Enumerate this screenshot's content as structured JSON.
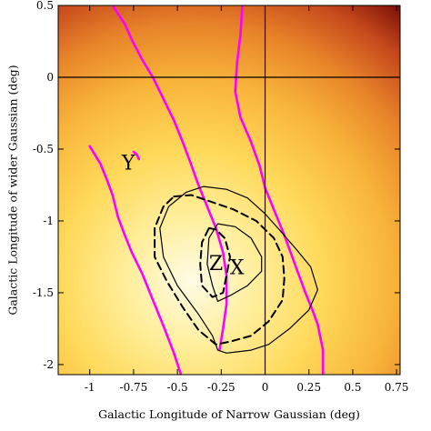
{
  "chart_data": {
    "type": "heatmap",
    "xlabel": "Galactic Longitude of Narrow Gaussian (deg)",
    "ylabel": "Galactic Longitude of wider Gaussian (deg)",
    "xlim": [
      -1.18,
      0.77
    ],
    "ylim": [
      -2.07,
      0.5
    ],
    "x_ticks": [
      -1,
      -0.75,
      -0.5,
      -0.25,
      0,
      0.25,
      0.5,
      0.75
    ],
    "x_tick_labels": [
      "-1",
      "-0.75",
      "-0.5",
      "-0.25",
      "0",
      "0.25",
      "0.5",
      "0.75"
    ],
    "y_ticks": [
      0.5,
      0,
      -0.5,
      -1,
      -1.5,
      -2
    ],
    "y_tick_labels": [
      "0.5",
      "0",
      "-0.5",
      "-1",
      "-1.5",
      "-2"
    ],
    "grid": false,
    "colormap": {
      "peak": [
        -0.42,
        -1.42
      ],
      "stops": [
        "#fffbe6",
        "#ffef9e",
        "#ffd95a",
        "#f8b43a",
        "#e8842a",
        "#c64a1c",
        "#7a0e06"
      ]
    },
    "reference_lines": {
      "x": 0,
      "y": 0,
      "color": "#000000"
    },
    "contours": [
      {
        "name": "magenta-left",
        "color": "#ff00ff",
        "style": "solid",
        "points": [
          [
            -1.0,
            -0.48
          ],
          [
            -0.94,
            -0.6
          ],
          [
            -0.9,
            -0.72
          ],
          [
            -0.87,
            -0.82
          ],
          [
            -0.84,
            -0.97
          ],
          [
            -0.8,
            -1.1
          ],
          [
            -0.76,
            -1.22
          ],
          [
            -0.7,
            -1.37
          ],
          [
            -0.64,
            -1.55
          ],
          [
            -0.58,
            -1.73
          ],
          [
            -0.52,
            -1.92
          ],
          [
            -0.48,
            -2.07
          ]
        ]
      },
      {
        "name": "magenta-middle",
        "color": "#ff00ff",
        "style": "solid",
        "points": [
          [
            -0.87,
            0.5
          ],
          [
            -0.8,
            0.37
          ],
          [
            -0.76,
            0.26
          ],
          [
            -0.7,
            0.12
          ],
          [
            -0.64,
            0.0
          ],
          [
            -0.58,
            -0.15
          ],
          [
            -0.52,
            -0.3
          ],
          [
            -0.47,
            -0.45
          ],
          [
            -0.43,
            -0.58
          ],
          [
            -0.38,
            -0.75
          ],
          [
            -0.33,
            -0.9
          ],
          [
            -0.28,
            -1.05
          ],
          [
            -0.24,
            -1.22
          ],
          [
            -0.22,
            -1.38
          ],
          [
            -0.22,
            -1.58
          ],
          [
            -0.24,
            -1.75
          ],
          [
            -0.26,
            -1.9
          ]
        ]
      },
      {
        "name": "magenta-right",
        "color": "#ff00ff",
        "style": "solid",
        "points": [
          [
            -0.13,
            0.5
          ],
          [
            -0.14,
            0.3
          ],
          [
            -0.16,
            0.1
          ],
          [
            -0.17,
            -0.1
          ],
          [
            -0.14,
            -0.28
          ],
          [
            -0.08,
            -0.45
          ],
          [
            -0.03,
            -0.62
          ],
          [
            0.0,
            -0.77
          ],
          [
            0.06,
            -0.95
          ],
          [
            0.11,
            -1.1
          ],
          [
            0.17,
            -1.3
          ],
          [
            0.23,
            -1.5
          ],
          [
            0.27,
            -1.62
          ],
          [
            0.3,
            -1.72
          ],
          [
            0.33,
            -1.9
          ],
          [
            0.33,
            -2.07
          ]
        ]
      },
      {
        "name": "magenta-y",
        "color": "#ff00ff",
        "style": "solid",
        "points": [
          [
            -0.75,
            -0.52
          ],
          [
            -0.73,
            -0.54
          ],
          [
            -0.72,
            -0.57
          ]
        ]
      },
      {
        "name": "solid-inner",
        "color": "#000000",
        "style": "solid",
        "points": [
          [
            -0.27,
            -1.02
          ],
          [
            -0.17,
            -1.04
          ],
          [
            -0.08,
            -1.12
          ],
          [
            -0.02,
            -1.25
          ],
          [
            -0.02,
            -1.35
          ],
          [
            -0.1,
            -1.45
          ],
          [
            -0.2,
            -1.52
          ],
          [
            -0.27,
            -1.56
          ],
          [
            -0.3,
            -1.45
          ],
          [
            -0.33,
            -1.3
          ],
          [
            -0.32,
            -1.12
          ],
          [
            -0.27,
            -1.02
          ]
        ]
      },
      {
        "name": "solid-outer",
        "color": "#000000",
        "style": "solid",
        "points": [
          [
            -0.45,
            -0.8
          ],
          [
            -0.35,
            -0.76
          ],
          [
            -0.22,
            -0.78
          ],
          [
            -0.1,
            -0.84
          ],
          [
            0.0,
            -0.95
          ],
          [
            0.08,
            -1.06
          ],
          [
            0.18,
            -1.2
          ],
          [
            0.26,
            -1.32
          ],
          [
            0.3,
            -1.48
          ],
          [
            0.25,
            -1.62
          ],
          [
            0.14,
            -1.75
          ],
          [
            0.02,
            -1.86
          ],
          [
            -0.08,
            -1.9
          ],
          [
            -0.22,
            -1.92
          ],
          [
            -0.27,
            -1.9
          ],
          [
            -0.3,
            -1.8
          ],
          [
            -0.38,
            -1.65
          ],
          [
            -0.5,
            -1.45
          ],
          [
            -0.58,
            -1.25
          ],
          [
            -0.6,
            -1.05
          ],
          [
            -0.55,
            -0.9
          ],
          [
            -0.45,
            -0.8
          ]
        ]
      },
      {
        "name": "dashed-inner",
        "color": "#000000",
        "style": "dashed",
        "points": [
          [
            -0.32,
            -1.05
          ],
          [
            -0.28,
            -1.06
          ],
          [
            -0.23,
            -1.12
          ],
          [
            -0.2,
            -1.25
          ],
          [
            -0.22,
            -1.38
          ],
          [
            -0.24,
            -1.5
          ],
          [
            -0.3,
            -1.53
          ],
          [
            -0.36,
            -1.45
          ],
          [
            -0.37,
            -1.3
          ],
          [
            -0.36,
            -1.15
          ],
          [
            -0.32,
            -1.05
          ]
        ]
      },
      {
        "name": "dashed-outer",
        "color": "#000000",
        "style": "dashed",
        "points": [
          [
            -0.52,
            -0.83
          ],
          [
            -0.42,
            -0.82
          ],
          [
            -0.3,
            -0.87
          ],
          [
            -0.18,
            -0.92
          ],
          [
            -0.05,
            -1.0
          ],
          [
            0.05,
            -1.12
          ],
          [
            0.1,
            -1.25
          ],
          [
            0.11,
            -1.4
          ],
          [
            0.1,
            -1.55
          ],
          [
            0.02,
            -1.7
          ],
          [
            -0.08,
            -1.8
          ],
          [
            -0.2,
            -1.84
          ],
          [
            -0.28,
            -1.86
          ],
          [
            -0.38,
            -1.76
          ],
          [
            -0.47,
            -1.6
          ],
          [
            -0.56,
            -1.42
          ],
          [
            -0.63,
            -1.25
          ],
          [
            -0.63,
            -1.05
          ],
          [
            -0.58,
            -0.9
          ],
          [
            -0.52,
            -0.83
          ]
        ]
      }
    ],
    "markers": [
      {
        "label": "Y",
        "x": -0.78,
        "y": -0.6
      },
      {
        "label": "Z",
        "x": -0.28,
        "y": -1.3
      },
      {
        "label": "X",
        "x": -0.16,
        "y": -1.33
      }
    ]
  }
}
